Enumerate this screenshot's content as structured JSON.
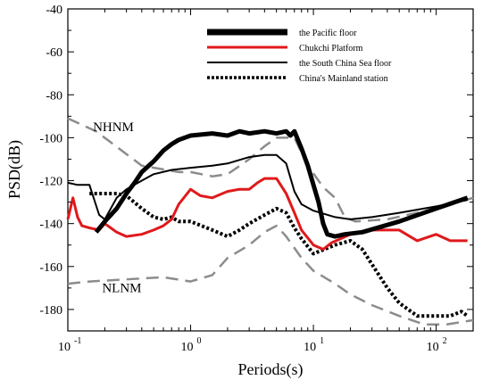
{
  "chart_data": {
    "type": "line",
    "xlabel": "Periods(s)",
    "ylabel": "PSD(dB)",
    "xscale": "log",
    "xlim": [
      0.1,
      200
    ],
    "ylim": [
      -190,
      -40
    ],
    "grid": false,
    "legend_placement": "top-right",
    "xticks": [
      {
        "base": "10",
        "exp": "-1",
        "value": 0.1
      },
      {
        "base": "10",
        "exp": "0",
        "value": 1
      },
      {
        "base": "10",
        "exp": "1",
        "value": 10
      },
      {
        "base": "10",
        "exp": "2",
        "value": 100
      }
    ],
    "yticks": [
      "-40",
      "-60",
      "-80",
      "-100",
      "-120",
      "-140",
      "-160",
      "-180"
    ],
    "annotations": [
      {
        "text": "NHNM",
        "x": 0.16,
        "y": -97
      },
      {
        "text": "NLNM",
        "x": 0.19,
        "y": -172
      }
    ],
    "series": [
      {
        "name": "the Pacific floor",
        "color": "#000000",
        "style": "solid-thick",
        "points": [
          [
            0.17,
            -144
          ],
          [
            0.2,
            -139
          ],
          [
            0.25,
            -133
          ],
          [
            0.3,
            -126
          ],
          [
            0.35,
            -121
          ],
          [
            0.4,
            -116
          ],
          [
            0.5,
            -111
          ],
          [
            0.6,
            -106
          ],
          [
            0.7,
            -103
          ],
          [
            0.8,
            -101
          ],
          [
            1.0,
            -99
          ],
          [
            1.5,
            -98
          ],
          [
            2.0,
            -99
          ],
          [
            2.5,
            -97
          ],
          [
            3.0,
            -98
          ],
          [
            4.0,
            -97
          ],
          [
            5.0,
            -98
          ],
          [
            6.0,
            -97
          ],
          [
            6.5,
            -99
          ],
          [
            7.0,
            -97
          ],
          [
            8.0,
            -105
          ],
          [
            9.0,
            -113
          ],
          [
            10.0,
            -122
          ],
          [
            11.0,
            -130
          ],
          [
            12.0,
            -140
          ],
          [
            13.0,
            -145
          ],
          [
            15.0,
            -146
          ],
          [
            18.0,
            -145
          ],
          [
            25.0,
            -144
          ],
          [
            50.0,
            -139
          ],
          [
            100.0,
            -133
          ],
          [
            180.0,
            -128
          ]
        ]
      },
      {
        "name": "Chukchi Platform",
        "color": "#e0191b",
        "style": "solid",
        "points": [
          [
            0.1,
            -138
          ],
          [
            0.11,
            -128
          ],
          [
            0.12,
            -137
          ],
          [
            0.13,
            -141
          ],
          [
            0.15,
            -142
          ],
          [
            0.18,
            -143
          ],
          [
            0.2,
            -140
          ],
          [
            0.25,
            -144
          ],
          [
            0.3,
            -146
          ],
          [
            0.4,
            -145
          ],
          [
            0.5,
            -143
          ],
          [
            0.6,
            -141
          ],
          [
            0.7,
            -138
          ],
          [
            0.8,
            -131
          ],
          [
            1.0,
            -124
          ],
          [
            1.2,
            -127
          ],
          [
            1.5,
            -128
          ],
          [
            2.0,
            -125
          ],
          [
            2.5,
            -124
          ],
          [
            3.0,
            -124
          ],
          [
            3.5,
            -121
          ],
          [
            4.0,
            -119
          ],
          [
            5.0,
            -119
          ],
          [
            6.0,
            -126
          ],
          [
            7.0,
            -135
          ],
          [
            8.0,
            -143
          ],
          [
            10.0,
            -150
          ],
          [
            12.0,
            -152
          ],
          [
            14.0,
            -149
          ],
          [
            20.0,
            -145
          ],
          [
            30.0,
            -143
          ],
          [
            50.0,
            -143
          ],
          [
            70.0,
            -148
          ],
          [
            100.0,
            -145
          ],
          [
            130.0,
            -148
          ],
          [
            180.0,
            -148
          ]
        ]
      },
      {
        "name": "the South China Sea floor",
        "color": "#000000",
        "style": "solid-medium",
        "points": [
          [
            0.1,
            -121
          ],
          [
            0.12,
            -122
          ],
          [
            0.15,
            -122
          ],
          [
            0.18,
            -136
          ],
          [
            0.2,
            -138
          ],
          [
            0.25,
            -128
          ],
          [
            0.3,
            -124
          ],
          [
            0.4,
            -120
          ],
          [
            0.5,
            -117
          ],
          [
            0.7,
            -115
          ],
          [
            1.0,
            -114
          ],
          [
            1.5,
            -113
          ],
          [
            2.0,
            -112
          ],
          [
            3.0,
            -109
          ],
          [
            4.0,
            -108
          ],
          [
            5.0,
            -108
          ],
          [
            6.0,
            -112
          ],
          [
            7.0,
            -125
          ],
          [
            8.0,
            -131
          ],
          [
            10.0,
            -134
          ],
          [
            15.0,
            -137
          ],
          [
            20.0,
            -138
          ],
          [
            30.0,
            -137
          ],
          [
            50.0,
            -135
          ],
          [
            100.0,
            -132
          ],
          [
            180.0,
            -129
          ]
        ]
      },
      {
        "name": "China's Mainland station",
        "color": "#000000",
        "style": "dotted",
        "points": [
          [
            0.15,
            -126
          ],
          [
            0.2,
            -126
          ],
          [
            0.25,
            -126
          ],
          [
            0.3,
            -127
          ],
          [
            0.4,
            -133
          ],
          [
            0.5,
            -137
          ],
          [
            0.6,
            -138
          ],
          [
            0.7,
            -137
          ],
          [
            0.8,
            -139
          ],
          [
            1.0,
            -139
          ],
          [
            1.5,
            -143
          ],
          [
            2.0,
            -146
          ],
          [
            2.5,
            -143
          ],
          [
            3.0,
            -140
          ],
          [
            4.0,
            -136
          ],
          [
            5.0,
            -133
          ],
          [
            6.0,
            -135
          ],
          [
            7.0,
            -142
          ],
          [
            8.0,
            -147
          ],
          [
            10.0,
            -154
          ],
          [
            15.0,
            -150
          ],
          [
            20.0,
            -148
          ],
          [
            25.0,
            -152
          ],
          [
            30.0,
            -159
          ],
          [
            40.0,
            -170
          ],
          [
            50.0,
            -177
          ],
          [
            70.0,
            -183
          ],
          [
            100.0,
            -183
          ],
          [
            130.0,
            -183
          ],
          [
            160.0,
            -181
          ],
          [
            180.0,
            -183
          ]
        ]
      },
      {
        "name": "",
        "color": "#8c8c8c",
        "style": "dashed",
        "points": [
          [
            0.1,
            -91
          ],
          [
            0.17,
            -97
          ],
          [
            0.4,
            -113
          ],
          [
            0.8,
            -116
          ],
          [
            1.0,
            -116
          ],
          [
            1.5,
            -118
          ],
          [
            2.0,
            -117
          ],
          [
            3.0,
            -110
          ],
          [
            4.0,
            -104
          ],
          [
            5.0,
            -100
          ],
          [
            7.0,
            -100
          ],
          [
            9.0,
            -113
          ],
          [
            12.0,
            -123
          ],
          [
            15.0,
            -128
          ],
          [
            18.0,
            -137
          ],
          [
            22.0,
            -139
          ],
          [
            40.0,
            -138
          ],
          [
            100.0,
            -133
          ],
          [
            200.0,
            -128
          ]
        ]
      },
      {
        "name": "",
        "color": "#8c8c8c",
        "style": "dashed",
        "points": [
          [
            0.1,
            -168
          ],
          [
            0.15,
            -167
          ],
          [
            0.3,
            -166
          ],
          [
            0.6,
            -165
          ],
          [
            1.0,
            -167
          ],
          [
            1.5,
            -164
          ],
          [
            2.0,
            -156
          ],
          [
            3.0,
            -150
          ],
          [
            4.0,
            -144
          ],
          [
            5.0,
            -141
          ],
          [
            6.0,
            -146
          ],
          [
            8.0,
            -156
          ],
          [
            10.0,
            -162
          ],
          [
            15.0,
            -168
          ],
          [
            20.0,
            -173
          ],
          [
            30.0,
            -178
          ],
          [
            50.0,
            -183
          ],
          [
            80.0,
            -187
          ],
          [
            120.0,
            -187
          ],
          [
            200.0,
            -185
          ]
        ]
      }
    ]
  }
}
